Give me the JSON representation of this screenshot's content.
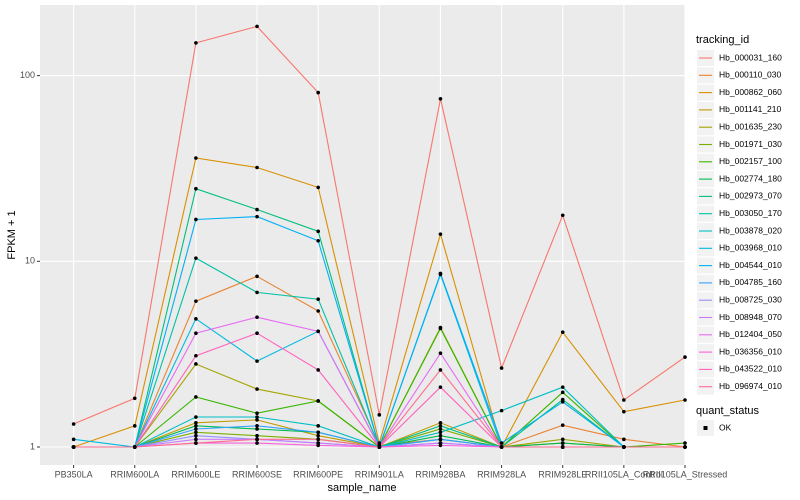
{
  "chart_data": {
    "type": "line",
    "x_label": "sample_name",
    "y_label": "FPKM + 1",
    "legend_title": "tracking_id",
    "shape_legend": {
      "title": "quant_status",
      "labels": [
        "OK"
      ]
    },
    "log_y": true,
    "grid": true,
    "point_color": "#000000",
    "ylim": [
      0.8,
      240
    ],
    "yticks": [
      1,
      10,
      100
    ],
    "categories": [
      "PB350LA",
      "RRIM600LA",
      "RRIM600LE",
      "RRIM600SE",
      "RRIM600PE",
      "RRIM901LA",
      "RRIM928BA",
      "RRIM928LA",
      "RRIM928LE",
      "RRII105LA_Control",
      "RRII105LA_Stressed"
    ],
    "series": [
      {
        "name": "Hb_000031_160",
        "color": "#F8766D",
        "values": [
          1.33,
          1.83,
          150,
          184,
          81,
          1.49,
          75,
          2.66,
          17.7,
          1.79,
          3.05
        ]
      },
      {
        "name": "Hb_000110_030",
        "color": "#EA8331",
        "values": [
          1.0,
          1.0,
          6.1,
          8.3,
          5.4,
          1.02,
          1.1,
          1.0,
          1.31,
          1.1,
          1.0
        ]
      },
      {
        "name": "Hb_000862_060",
        "color": "#D89000",
        "values": [
          1.0,
          1.3,
          36,
          32,
          25,
          1.05,
          14,
          1.0,
          4.15,
          1.55,
          1.79
        ]
      },
      {
        "name": "Hb_001141_210",
        "color": "#C09B00",
        "values": [
          1.0,
          1.0,
          1.35,
          1.4,
          1.15,
          1.0,
          1.35,
          1.0,
          1.05,
          1.0,
          1.0
        ]
      },
      {
        "name": "Hb_001635_230",
        "color": "#A3A500",
        "values": [
          1.0,
          1.0,
          2.8,
          2.05,
          1.77,
          1.0,
          4.4,
          1.0,
          1.1,
          1.0,
          1.0
        ]
      },
      {
        "name": "Hb_001971_030",
        "color": "#7CAE00",
        "values": [
          1.0,
          1.0,
          1.2,
          1.15,
          1.1,
          1.0,
          1.25,
          1.0,
          1.0,
          1.0,
          1.0
        ]
      },
      {
        "name": "Hb_002157_100",
        "color": "#39B600",
        "values": [
          1.0,
          1.0,
          1.86,
          1.52,
          1.77,
          1.0,
          4.35,
          1.0,
          1.97,
          1.0,
          1.05
        ]
      },
      {
        "name": "Hb_002774_180",
        "color": "#00BB4E",
        "values": [
          1.0,
          1.0,
          1.3,
          1.25,
          1.2,
          1.0,
          1.15,
          1.0,
          1.05,
          1.0,
          1.0
        ]
      },
      {
        "name": "Hb_002973_070",
        "color": "#00BF7D",
        "values": [
          1.0,
          1.0,
          24.6,
          19,
          14.5,
          1.0,
          1.3,
          1.0,
          1.8,
          1.0,
          1.0
        ]
      },
      {
        "name": "Hb_003050_170",
        "color": "#00C1A3",
        "values": [
          1.0,
          1.0,
          10.4,
          6.8,
          6.25,
          1.0,
          1.1,
          1.0,
          1.0,
          1.0,
          1.0
        ]
      },
      {
        "name": "Hb_003878_020",
        "color": "#00BFC4",
        "values": [
          1.0,
          1.0,
          1.45,
          1.45,
          1.3,
          1.0,
          1.2,
          1.57,
          2.1,
          1.0,
          1.0
        ]
      },
      {
        "name": "Hb_003968_010",
        "color": "#00BAE0",
        "values": [
          1.1,
          1.0,
          4.9,
          2.9,
          4.2,
          1.0,
          8.5,
          1.0,
          1.0,
          1.0,
          1.0
        ]
      },
      {
        "name": "Hb_004544_010",
        "color": "#00B0F6",
        "values": [
          1.0,
          1.0,
          16.8,
          17.4,
          12.9,
          1.0,
          8.6,
          1.05,
          1.75,
          1.0,
          1.0
        ]
      },
      {
        "name": "Hb_004785_160",
        "color": "#35A2FF",
        "values": [
          1.0,
          1.0,
          1.25,
          1.3,
          1.2,
          1.0,
          1.1,
          1.0,
          1.0,
          1.0,
          1.0
        ]
      },
      {
        "name": "Hb_008725_030",
        "color": "#9590FF",
        "values": [
          1.0,
          1.0,
          1.15,
          1.1,
          1.05,
          1.0,
          1.05,
          1.0,
          1.0,
          1.0,
          1.0
        ]
      },
      {
        "name": "Hb_008948_070",
        "color": "#C77CFF",
        "values": [
          1.0,
          1.0,
          1.1,
          1.1,
          1.05,
          1.0,
          1.05,
          1.0,
          1.0,
          1.0,
          1.0
        ]
      },
      {
        "name": "Hb_012404_050",
        "color": "#E76BF3",
        "values": [
          1.0,
          1.0,
          4.1,
          5.0,
          4.2,
          1.0,
          3.2,
          1.0,
          1.0,
          1.0,
          1.0
        ]
      },
      {
        "name": "Hb_036356_010",
        "color": "#FA62DB",
        "values": [
          1.0,
          1.0,
          1.05,
          1.05,
          1.02,
          1.0,
          1.02,
          1.0,
          1.0,
          1.0,
          1.0
        ]
      },
      {
        "name": "Hb_043522_010",
        "color": "#FF62BC",
        "values": [
          1.0,
          1.0,
          3.1,
          4.1,
          2.6,
          1.0,
          2.1,
          1.0,
          1.0,
          1.0,
          1.0
        ]
      },
      {
        "name": "Hb_096974_010",
        "color": "#FF6C91",
        "values": [
          1.0,
          1.0,
          1.05,
          1.1,
          1.1,
          1.0,
          2.6,
          1.0,
          1.0,
          1.0,
          1.0
        ]
      }
    ]
  }
}
